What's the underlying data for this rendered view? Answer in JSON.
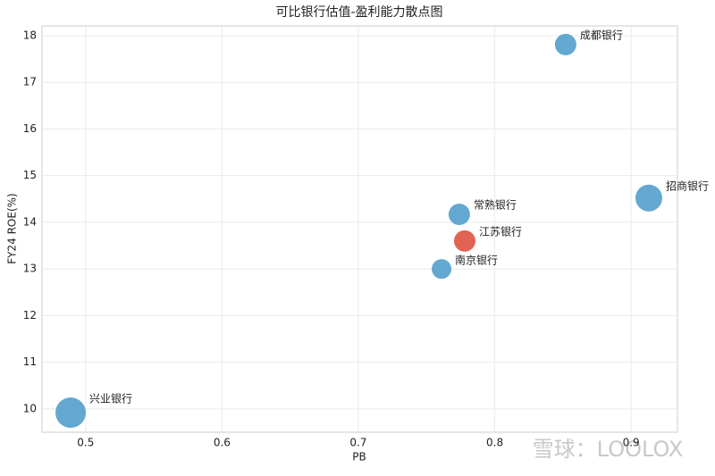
{
  "chart_data": {
    "type": "scatter",
    "title": "可比银行估值-盈利能力散点图",
    "x_label": "PB",
    "y_label": "FY24 ROE(%)",
    "labels": [
      "兴业银行",
      "成都银行",
      "招商银行",
      "常熟银行",
      "江苏银行",
      "南京银行"
    ],
    "x": [
      0.489,
      0.852,
      0.913,
      0.774,
      0.778,
      0.761
    ],
    "values": [
      9.92,
      17.81,
      14.52,
      14.17,
      13.6,
      13.0
    ],
    "sizes": [
      17,
      12,
      15,
      12,
      12,
      11
    ],
    "colors": [
      "#5ba3cf",
      "#5ba3cf",
      "#5ba3cf",
      "#5ba3cf",
      "#e05a4a",
      "#5ba3cf"
    ],
    "xlim": [
      0.468,
      0.934
    ],
    "xticks": [
      0.5,
      0.6,
      0.7,
      0.8,
      0.9
    ],
    "ylim": [
      9.5,
      18.21
    ],
    "yticks": [
      10,
      11,
      12,
      13,
      14,
      15,
      16,
      17,
      18
    ],
    "grid": true,
    "watermark": "雪球：LOOLOX"
  }
}
